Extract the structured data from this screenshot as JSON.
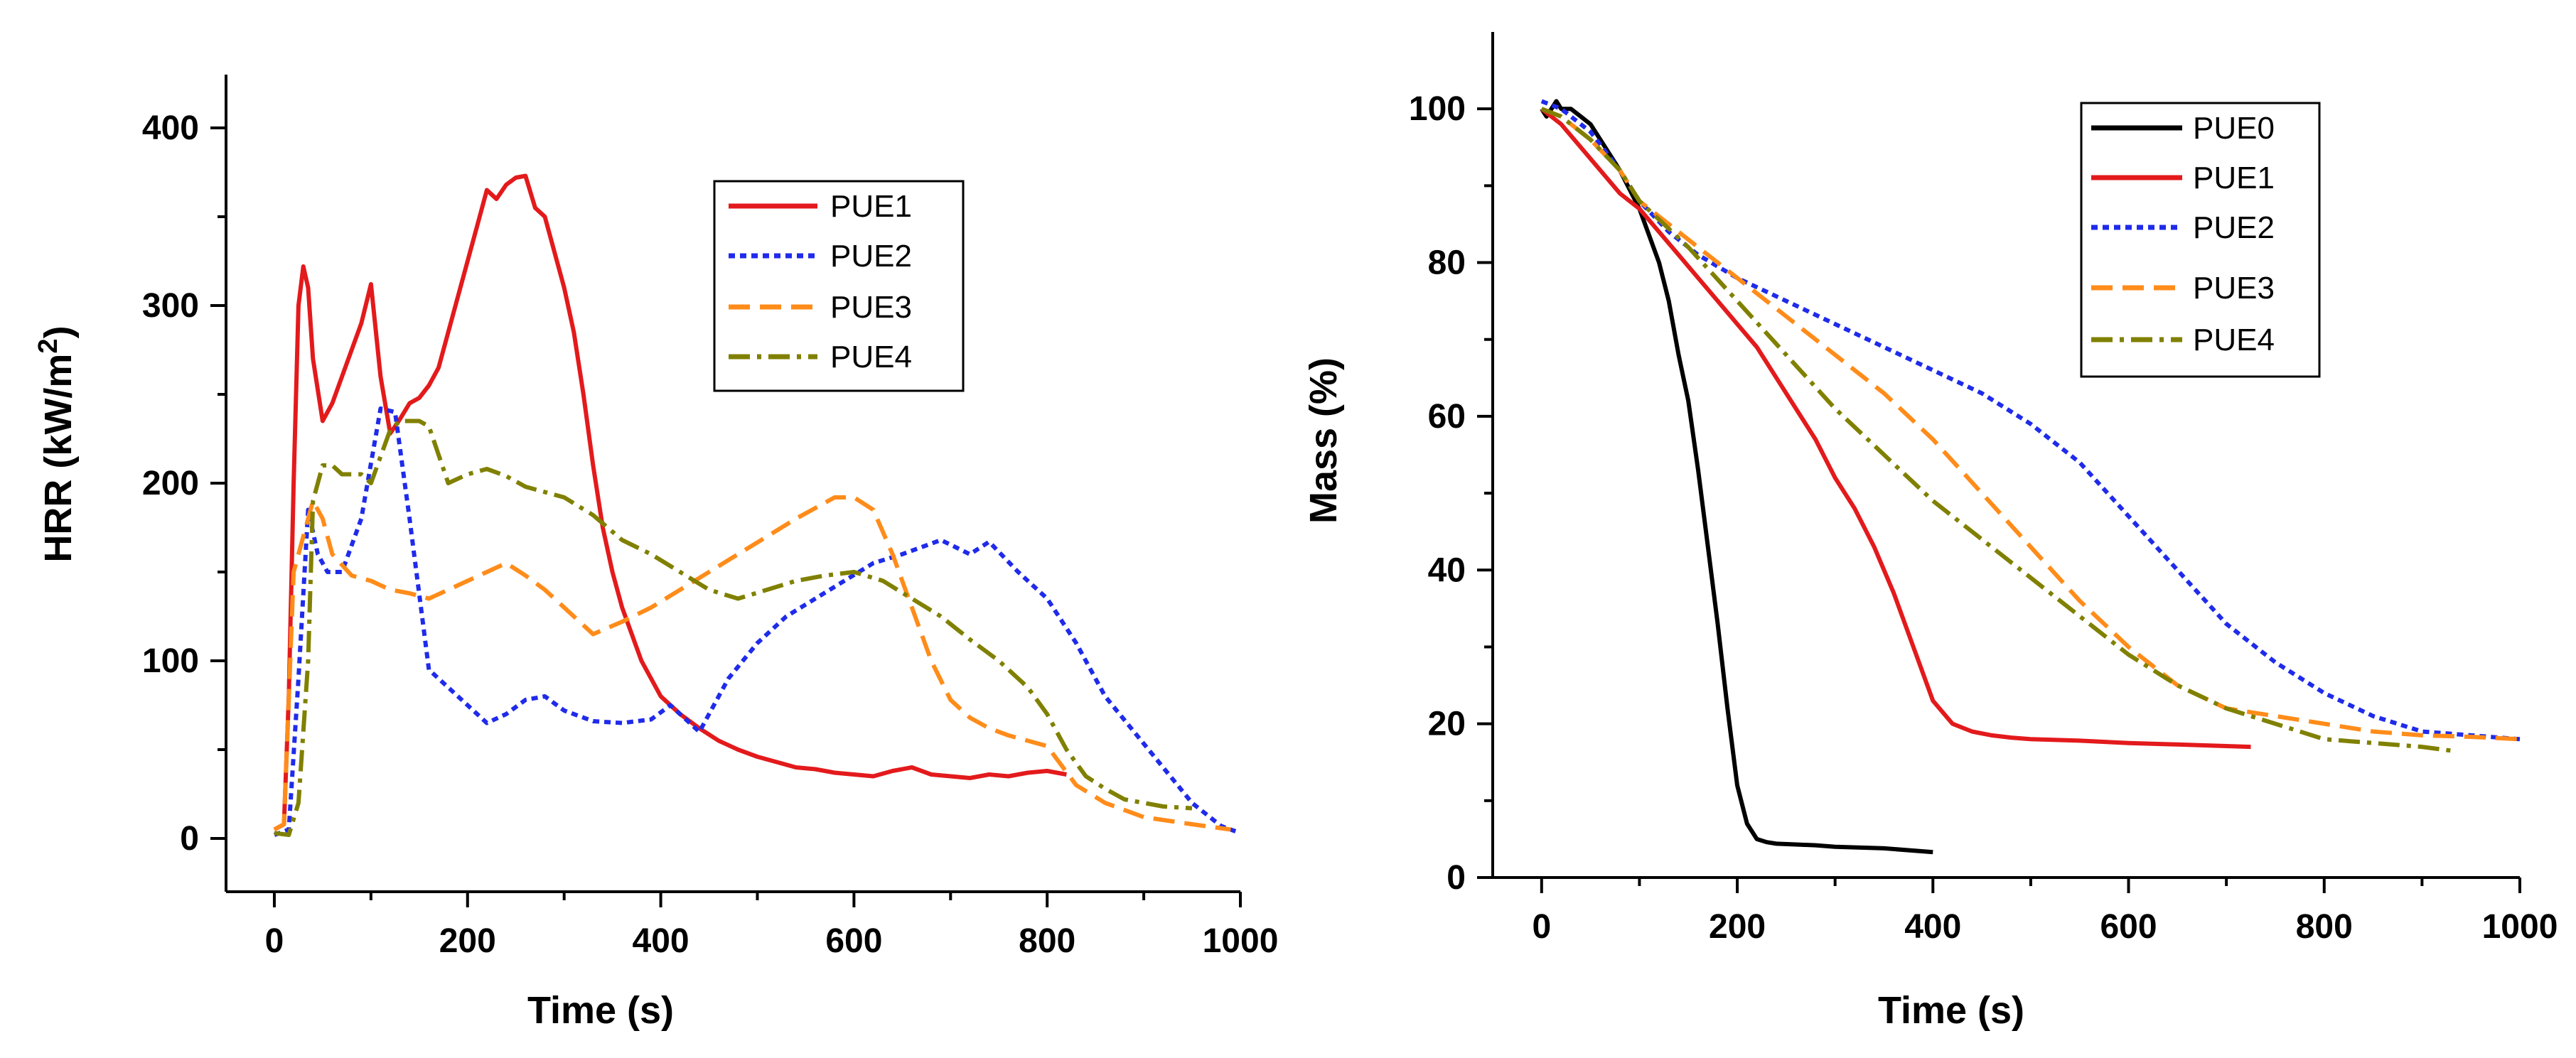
{
  "figure": {
    "panels": 2
  },
  "chart_data": [
    {
      "type": "line",
      "xlabel": "Time (s)",
      "ylabel_main": "HRR (kW/m",
      "ylabel_sup": "2",
      "ylabel_close": ")",
      "xlim": [
        -50,
        1000
      ],
      "ylim": [
        -30,
        430
      ],
      "xticks": [
        0,
        200,
        400,
        600,
        800,
        1000
      ],
      "xtick_labels": [
        "0",
        "200",
        "400",
        "600",
        "800",
        "1000"
      ],
      "yticks": [
        0,
        100,
        200,
        300,
        400
      ],
      "ytick_labels": [
        "0",
        "100",
        "200",
        "300",
        "400"
      ],
      "legend_position": "top-right",
      "series": [
        {
          "name": "PUE1",
          "color": "#e31a1c",
          "dash": "solid",
          "x": [
            0,
            10,
            15,
            20,
            25,
            30,
            35,
            40,
            50,
            60,
            70,
            80,
            90,
            100,
            110,
            120,
            130,
            140,
            150,
            160,
            170,
            180,
            190,
            200,
            210,
            220,
            230,
            240,
            250,
            260,
            270,
            280,
            290,
            300,
            310,
            320,
            330,
            340,
            350,
            360,
            370,
            380,
            400,
            420,
            440,
            460,
            480,
            500,
            520,
            540,
            560,
            580,
            600,
            620,
            640,
            660,
            680,
            700,
            720,
            740,
            760,
            780,
            800,
            820
          ],
          "y": [
            5,
            8,
            80,
            200,
            300,
            322,
            310,
            270,
            235,
            245,
            260,
            275,
            290,
            312,
            260,
            228,
            236,
            245,
            248,
            255,
            265,
            285,
            305,
            325,
            345,
            365,
            360,
            368,
            372,
            373,
            355,
            350,
            330,
            310,
            285,
            250,
            210,
            175,
            150,
            130,
            115,
            100,
            80,
            70,
            62,
            55,
            50,
            46,
            43,
            40,
            39,
            37,
            36,
            35,
            38,
            40,
            36,
            35,
            34,
            36,
            35,
            37,
            38,
            36
          ]
        },
        {
          "name": "PUE2",
          "color": "#1f2bea",
          "dash": "9 7",
          "x": [
            0,
            15,
            25,
            35,
            45,
            55,
            70,
            90,
            110,
            125,
            140,
            160,
            180,
            200,
            220,
            240,
            260,
            280,
            300,
            330,
            360,
            390,
            410,
            440,
            470,
            500,
            530,
            560,
            590,
            620,
            650,
            690,
            720,
            740,
            770,
            800,
            830,
            860,
            890,
            920,
            950,
            980,
            995
          ],
          "y": [
            2,
            5,
            90,
            185,
            160,
            150,
            150,
            180,
            242,
            240,
            180,
            95,
            85,
            75,
            65,
            70,
            78,
            80,
            72,
            66,
            65,
            67,
            75,
            60,
            90,
            110,
            125,
            135,
            145,
            155,
            160,
            168,
            160,
            167,
            150,
            135,
            110,
            80,
            60,
            40,
            20,
            7,
            4
          ]
        },
        {
          "name": "PUE3",
          "color": "#ff8c1a",
          "dash": "30 14",
          "x": [
            0,
            10,
            20,
            30,
            40,
            50,
            60,
            80,
            100,
            120,
            140,
            160,
            180,
            200,
            220,
            240,
            260,
            280,
            300,
            330,
            360,
            390,
            420,
            450,
            480,
            510,
            540,
            560,
            580,
            600,
            620,
            640,
            660,
            680,
            700,
            720,
            740,
            760,
            780,
            800,
            830,
            860,
            900,
            950,
            990
          ],
          "y": [
            5,
            8,
            150,
            170,
            190,
            180,
            160,
            148,
            145,
            140,
            138,
            135,
            140,
            145,
            150,
            155,
            148,
            140,
            130,
            115,
            122,
            130,
            140,
            150,
            160,
            170,
            180,
            186,
            192,
            192,
            185,
            160,
            130,
            100,
            78,
            68,
            62,
            58,
            55,
            52,
            30,
            20,
            12,
            8,
            5
          ]
        },
        {
          "name": "PUE4",
          "color": "#808000",
          "dash": "30 10 6 10",
          "x": [
            0,
            15,
            25,
            35,
            40,
            50,
            60,
            70,
            80,
            90,
            100,
            110,
            120,
            130,
            140,
            150,
            160,
            180,
            200,
            220,
            240,
            260,
            280,
            300,
            330,
            360,
            390,
            420,
            450,
            480,
            510,
            540,
            570,
            600,
            630,
            660,
            690,
            720,
            750,
            780,
            800,
            820,
            840,
            860,
            880,
            900,
            920,
            950
          ],
          "y": [
            3,
            2,
            20,
            100,
            190,
            210,
            210,
            205,
            205,
            205,
            200,
            215,
            230,
            235,
            235,
            235,
            232,
            200,
            205,
            208,
            204,
            198,
            195,
            192,
            182,
            168,
            160,
            150,
            140,
            135,
            140,
            145,
            148,
            150,
            145,
            135,
            125,
            112,
            100,
            85,
            70,
            50,
            35,
            28,
            22,
            20,
            18,
            17
          ]
        }
      ]
    },
    {
      "type": "line",
      "xlabel": "Time (s)",
      "ylabel": "Mass (%)",
      "xlim": [
        -50,
        1000
      ],
      "ylim": [
        0,
        110
      ],
      "xticks": [
        0,
        200,
        400,
        600,
        800,
        1000
      ],
      "xtick_labels": [
        "0",
        "200",
        "400",
        "600",
        "800",
        "1000"
      ],
      "yticks": [
        0,
        20,
        40,
        60,
        80,
        100
      ],
      "ytick_labels": [
        "0",
        "20",
        "40",
        "60",
        "80",
        "100"
      ],
      "legend_position": "top-right",
      "series": [
        {
          "name": "PUE0",
          "color": "#000000",
          "dash": "solid",
          "x": [
            0,
            5,
            10,
            15,
            20,
            30,
            40,
            50,
            60,
            80,
            100,
            120,
            130,
            140,
            150,
            160,
            170,
            180,
            190,
            200,
            210,
            220,
            230,
            240,
            260,
            280,
            300,
            350,
            400
          ],
          "y": [
            100,
            99,
            100,
            101,
            100,
            100,
            99,
            98,
            96,
            92,
            87,
            80,
            75,
            68,
            62,
            53,
            43,
            33,
            22,
            12,
            7,
            5,
            4.6,
            4.4,
            4.3,
            4.2,
            4.0,
            3.8,
            3.3
          ]
        },
        {
          "name": "PUE1",
          "color": "#e31a1c",
          "dash": "solid",
          "x": [
            0,
            20,
            40,
            60,
            80,
            100,
            120,
            140,
            160,
            180,
            200,
            220,
            240,
            260,
            280,
            300,
            320,
            340,
            360,
            380,
            400,
            420,
            440,
            460,
            480,
            500,
            550,
            600,
            650,
            700,
            725
          ],
          "y": [
            100,
            98,
            95,
            92,
            89,
            87,
            84,
            81,
            78,
            75,
            72,
            69,
            65,
            61,
            57,
            52,
            48,
            43,
            37,
            30,
            23,
            20,
            19,
            18.5,
            18.2,
            18,
            17.8,
            17.5,
            17.3,
            17.1,
            17
          ]
        },
        {
          "name": "PUE2",
          "color": "#1f2bea",
          "dash": "9 7",
          "x": [
            0,
            20,
            50,
            80,
            100,
            130,
            160,
            200,
            250,
            300,
            350,
            400,
            450,
            500,
            550,
            600,
            650,
            700,
            750,
            800,
            850,
            900,
            950,
            1000
          ],
          "y": [
            101,
            100,
            97,
            92,
            88,
            84,
            81,
            78,
            75,
            72,
            69,
            66,
            63,
            59,
            54,
            47,
            40,
            33,
            28,
            24,
            21,
            19,
            18.5,
            18
          ]
        },
        {
          "name": "PUE3",
          "color": "#ff8c1a",
          "dash": "30 14",
          "x": [
            0,
            20,
            50,
            80,
            100,
            150,
            200,
            250,
            300,
            350,
            400,
            450,
            500,
            550,
            600,
            650,
            700,
            750,
            800,
            850,
            900,
            950,
            1000
          ],
          "y": [
            100,
            99,
            96,
            92,
            88,
            83,
            78,
            73,
            68,
            63,
            57,
            50,
            43,
            36,
            30,
            25,
            22,
            21,
            20,
            19,
            18.5,
            18.3,
            18
          ]
        },
        {
          "name": "PUE4",
          "color": "#808000",
          "dash": "30 10 6 10",
          "x": [
            0,
            20,
            50,
            80,
            100,
            150,
            200,
            250,
            300,
            350,
            400,
            450,
            500,
            550,
            600,
            650,
            700,
            750,
            800,
            850,
            900,
            930
          ],
          "y": [
            100,
            99,
            96,
            92,
            88,
            82,
            75,
            68,
            61,
            55,
            49,
            44,
            39,
            34,
            29,
            25,
            22,
            20,
            18,
            17.5,
            17,
            16.5
          ]
        }
      ]
    }
  ]
}
